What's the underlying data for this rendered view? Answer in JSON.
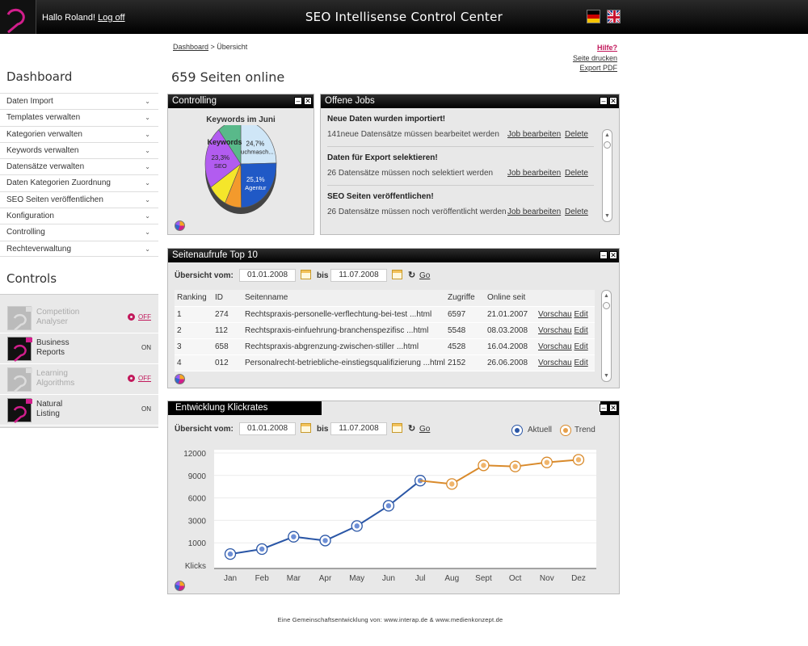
{
  "header": {
    "greeting": "Hallo Roland!",
    "logoff_label": "Log off",
    "title": "SEO Intellisense Control Center",
    "flags": [
      "de-flag-icon",
      "uk-flag-icon"
    ]
  },
  "breadcrumb": {
    "root": "Dashboard",
    "separator": " > ",
    "current": "Übersicht"
  },
  "top_links": {
    "help": "Hilfe?",
    "print": "Seite drucken",
    "pdf": "Export PDF"
  },
  "page_title": "659 Seiten online",
  "sidebar": {
    "dashboard_heading": "Dashboard",
    "items": [
      {
        "label": "Daten Import"
      },
      {
        "label": "Templates verwalten"
      },
      {
        "label": "Kategorien verwalten"
      },
      {
        "label": "Keywords verwalten"
      },
      {
        "label": "Datensätze verwalten"
      },
      {
        "label": "Daten Kategorien Zuordnung"
      },
      {
        "label": "SEO Seiten veröffentlichen"
      },
      {
        "label": "Konfiguration"
      },
      {
        "label": "Controlling"
      },
      {
        "label": "Rechteverwaltung"
      }
    ],
    "chevron": "⌄",
    "controls_heading": "Controls",
    "controls": [
      {
        "label": "Competition\nAnalyser",
        "state": "OFF",
        "on": false
      },
      {
        "label": "Business\nReports",
        "state": "ON",
        "on": true
      },
      {
        "label": "Learning\nAlgorithms",
        "state": "OFF",
        "on": false
      },
      {
        "label": "Natural\nListing",
        "state": "ON",
        "on": true
      }
    ]
  },
  "controlling": {
    "title": "Controlling",
    "pie_title": "Keywords im Juni",
    "colors": {
      "agentur": "#2059c6",
      "suchmaschine": "#cfe6f7",
      "seo": "#b25cf0",
      "green": "#59b98a",
      "yellow": "#f5e62a",
      "orange": "#f39a2c"
    },
    "chart_data": {
      "type": "pie",
      "title": "Keywords im Juni",
      "center_label": "Keywords",
      "slices": [
        {
          "label": "Suchmasch...",
          "value": 24.7,
          "display": "24,7%"
        },
        {
          "label": "Agentur",
          "value": 25.1,
          "display": "25,1%"
        },
        {
          "label": "",
          "value": 7.5,
          "display": ""
        },
        {
          "label": "",
          "value": 8.7,
          "display": ""
        },
        {
          "label": "SEO",
          "value": 23.3,
          "display": "23,3%"
        },
        {
          "label": "",
          "value": 10.7,
          "display": ""
        }
      ]
    }
  },
  "jobs": {
    "title": "Offene Jobs",
    "edit_label": "Job bearbeiten",
    "delete_label": "Delete",
    "items": [
      {
        "title": "Neue Daten wurden  importiert!",
        "text": "141neue Datensätze müssen bearbeitet werden"
      },
      {
        "title": "Daten für Export selektieren!",
        "text": "26 Datensätze müssen noch selektiert werden"
      },
      {
        "title": "SEO Seiten veröffentlichen!",
        "text": "26 Datensätze müssen noch veröffentlicht werden"
      }
    ]
  },
  "top10": {
    "title": "Seitenaufrufe Top 10",
    "filter": {
      "from_label": "Übersicht vom:",
      "from": "01.01.2008",
      "to_label": "bis",
      "to": "11.07.2008",
      "go": "Go"
    },
    "columns": [
      "Ranking",
      "ID",
      "Seitenname",
      "Zugriffe",
      "Online seit"
    ],
    "preview_label": "Vorschau",
    "edit_label": "Edit",
    "rows": [
      {
        "rank": "1",
        "id": "274",
        "name": "Rechtspraxis-personelle-verflechtung-bei-test ...html",
        "hits": "6597",
        "since": "21.01.2007"
      },
      {
        "rank": "2",
        "id": "112",
        "name": "Rechtspraxis-einfuehrung-branchenspezifisc ...html",
        "hits": "5548",
        "since": "08.03.2008"
      },
      {
        "rank": "3",
        "id": "658",
        "name": "Rechtspraxis-abgrenzung-zwischen-stiller ...html",
        "hits": "4528",
        "since": "16.04.2008"
      },
      {
        "rank": "4",
        "id": "012",
        "name": "Personalrecht-betriebliche-einstiegsqualifizierung ...html",
        "hits": "2152",
        "since": "26.06.2008"
      }
    ]
  },
  "klickrates": {
    "title": "Entwicklung Klickrates",
    "filter": {
      "from_label": "Übersicht vom:",
      "from": "01.01.2008",
      "to_label": "bis",
      "to": "11.07.2008",
      "go": "Go"
    },
    "colors": {
      "aktuell": "#2a56a6",
      "trend": "#d98a2b"
    },
    "chart_data": {
      "type": "line",
      "categories": [
        "Jan",
        "Feb",
        "Mar",
        "Apr",
        "May",
        "Jun",
        "Jul",
        "Aug",
        "Sept",
        "Oct",
        "Nov",
        "Dez"
      ],
      "y_ticks": [
        "12000",
        "9000",
        "6000",
        "3000",
        "1000",
        "Klicks"
      ],
      "series": [
        {
          "name": "Aktuell",
          "levels": [
            0.5,
            0.72,
            1.27,
            1.1,
            1.75,
            2.65,
            3.77
          ]
        },
        {
          "name": "Trend",
          "levels": [
            3.77,
            3.62,
            4.45,
            4.4,
            4.58,
            4.7
          ],
          "start_index": 6
        }
      ]
    }
  },
  "footer": "Eine Gemeinschaftsentwicklung von: www.interap.de & www.medienkonzept.de"
}
